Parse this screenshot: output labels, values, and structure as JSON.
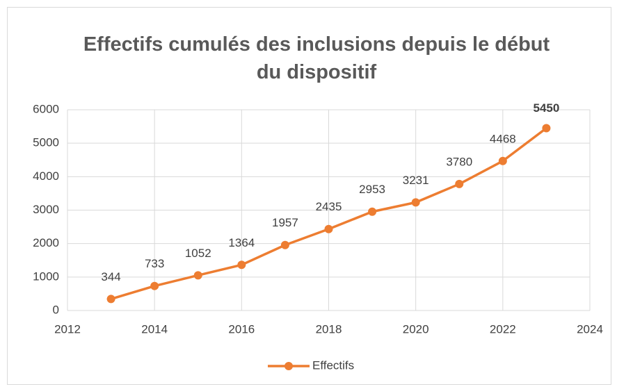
{
  "chart_data": {
    "type": "line",
    "title": "Effectifs cumulés des inclusions depuis le début du dispositif",
    "x": [
      2013,
      2014,
      2015,
      2016,
      2017,
      2018,
      2019,
      2020,
      2021,
      2022,
      2023
    ],
    "series": [
      {
        "name": "Effectifs",
        "color": "#ed7d31",
        "values": [
          344,
          733,
          1052,
          1364,
          1957,
          2435,
          2953,
          3231,
          3780,
          4468,
          5450
        ]
      }
    ],
    "xlim": [
      2012,
      2024
    ],
    "xticks": [
      2012,
      2014,
      2016,
      2018,
      2020,
      2022,
      2024
    ],
    "ylim": [
      0,
      6000
    ],
    "yticks": [
      0,
      1000,
      2000,
      3000,
      4000,
      5000,
      6000
    ],
    "grid": true,
    "legend": "bottom"
  }
}
